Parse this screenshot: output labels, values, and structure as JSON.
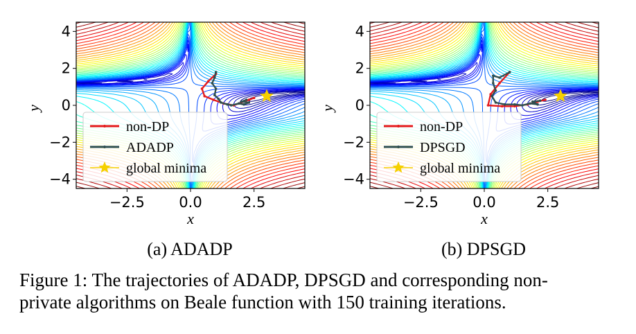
{
  "figure": {
    "caption_lines": [
      "Figure 1: The trajectories of ADADP, DPSGD and corresponding non-",
      "private algorithms on Beale function with 150 training iterations."
    ]
  },
  "chart_data": [
    {
      "type": "line",
      "subcaption": "(a) ADADP",
      "xlabel": "x",
      "ylabel": "y",
      "xlim": [
        -4.5,
        4.5
      ],
      "ylim": [
        -4.5,
        4.5
      ],
      "xticks": [
        "−2.5",
        "0.0",
        "2.5"
      ],
      "xtick_values": [
        -2.5,
        0.0,
        2.5
      ],
      "yticks": [
        "−4",
        "−2",
        "0",
        "2",
        "4"
      ],
      "ytick_values": [
        -4,
        -2,
        0,
        2,
        4
      ],
      "background": "contour plot of the Beale function",
      "legend_position": "lower-left",
      "series": [
        {
          "name": "non-DP",
          "color": "#e41a1c",
          "x": [
            1.0,
            0.7,
            0.45,
            0.55,
            0.9,
            1.3,
            1.7,
            2.0,
            2.3,
            2.5
          ],
          "y": [
            1.7,
            1.3,
            0.9,
            0.5,
            0.3,
            0.1,
            0.0,
            0.15,
            0.3,
            0.4
          ]
        },
        {
          "name": "ADADP",
          "color": "#2f4f4f",
          "x": [
            1.0,
            0.95,
            0.85,
            1.0,
            0.95,
            1.1,
            1.2,
            1.45,
            1.6,
            1.9,
            2.1,
            2.3,
            2.0,
            2.2
          ],
          "y": [
            1.8,
            1.5,
            1.2,
            0.9,
            0.55,
            0.35,
            0.15,
            0.05,
            0.0,
            0.1,
            0.05,
            0.15,
            0.2,
            0.3
          ]
        },
        {
          "name": "global minima",
          "color": "#f5d000",
          "marker": "star",
          "x": [
            3.0
          ],
          "y": [
            0.5
          ]
        }
      ]
    },
    {
      "type": "line",
      "subcaption": "(b) DPSGD",
      "xlabel": "x",
      "ylabel": "y",
      "xlim": [
        -4.5,
        4.5
      ],
      "ylim": [
        -4.5,
        4.5
      ],
      "xticks": [
        "−2.5",
        "0.0",
        "2.5"
      ],
      "xtick_values": [
        -2.5,
        0.0,
        2.5
      ],
      "yticks": [
        "−4",
        "−2",
        "0",
        "2",
        "4"
      ],
      "ytick_values": [
        -4,
        -2,
        0,
        2,
        4
      ],
      "background": "contour plot of the Beale function",
      "legend_position": "lower-left",
      "series": [
        {
          "name": "non-DP",
          "color": "#e41a1c",
          "x": [
            1.0,
            0.6,
            0.25,
            0.15,
            0.7,
            1.2,
            1.7,
            2.1,
            2.4
          ],
          "y": [
            1.8,
            1.2,
            0.6,
            0.0,
            -0.05,
            -0.05,
            0.05,
            0.2,
            0.3
          ]
        },
        {
          "name": "DPSGD",
          "color": "#2f4f4f",
          "x": [
            1.0,
            0.6,
            0.35,
            0.35,
            0.45,
            0.3,
            0.45,
            0.8,
            1.2,
            1.5,
            1.8,
            2.1,
            1.9,
            2.2
          ],
          "y": [
            1.8,
            1.5,
            1.6,
            1.2,
            0.8,
            0.5,
            0.15,
            0.05,
            0.05,
            0.0,
            0.1,
            0.05,
            0.2,
            0.25
          ]
        },
        {
          "name": "global minima",
          "color": "#f5d000",
          "marker": "star",
          "x": [
            3.0
          ],
          "y": [
            0.5
          ]
        }
      ]
    }
  ]
}
